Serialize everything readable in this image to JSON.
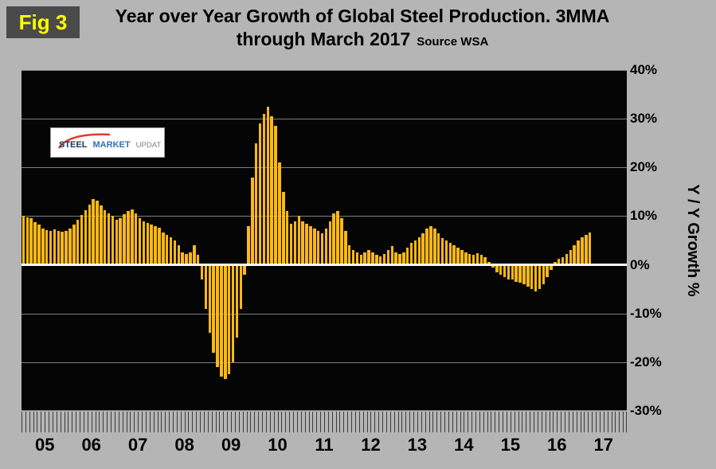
{
  "fig_label": "Fig 3",
  "title_line1": "Year over Year Growth of Global Steel Production. 3MMA",
  "title_line2": "through March 2017",
  "source": "Source WSA",
  "y_axis_title": "Y / Y Growth %",
  "logo": {
    "word1": "STEEL",
    "word2": "MARKET",
    "word3": "UPDATE"
  },
  "colors": {
    "page_bg": "#b5b5b5",
    "plot_bg": "#050505",
    "bar": "#FDB813",
    "grid": "#7d7d7d",
    "zero_line": "#ffffff",
    "fig_bg": "#4a4a4a",
    "fig_text": "#ffff00",
    "logo_red": "#e03c31",
    "logo_navy": "#17365d",
    "logo_blue": "#2e74b5"
  },
  "chart_data": {
    "type": "bar",
    "title": "Year over Year Growth of Global Steel Production. 3MMA through March 2017",
    "source": "WSA",
    "ylabel": "Y / Y Growth %",
    "ylim": [
      -30,
      40
    ],
    "ytick_percent": [
      40,
      30,
      20,
      10,
      0,
      -10,
      -20,
      -30
    ],
    "x_start": "2005-01",
    "x_end": "2017-03",
    "year_labels": [
      "05",
      "06",
      "07",
      "08",
      "09",
      "10",
      "11",
      "12",
      "13",
      "14",
      "15",
      "16",
      "17"
    ],
    "months_per_year": 12,
    "values": [
      10.0,
      9.8,
      9.5,
      8.8,
      8.2,
      7.5,
      7.2,
      7.0,
      7.3,
      7.0,
      6.8,
      7.0,
      7.5,
      8.3,
      9.2,
      10.2,
      11.2,
      12.3,
      13.5,
      13.2,
      12.2,
      11.2,
      10.6,
      10.0,
      9.2,
      9.6,
      10.4,
      11.0,
      11.4,
      10.6,
      9.6,
      9.0,
      8.6,
      8.2,
      8.0,
      7.6,
      6.6,
      6.2,
      5.6,
      5.0,
      4.0,
      2.6,
      2.2,
      2.6,
      4.0,
      2.0,
      -3.0,
      -9.0,
      -14.0,
      -18.0,
      -21.0,
      -23.0,
      -23.5,
      -22.5,
      -20.0,
      -15.0,
      -9.0,
      -2.0,
      8.0,
      18.0,
      25.0,
      29.0,
      31.0,
      32.5,
      30.5,
      28.5,
      21.0,
      15.0,
      11.0,
      8.5,
      9.0,
      10.0,
      9.0,
      8.5,
      8.0,
      7.5,
      7.0,
      6.5,
      7.5,
      9.0,
      10.5,
      11.0,
      9.5,
      7.0,
      4.0,
      3.0,
      2.5,
      2.0,
      2.5,
      3.0,
      2.5,
      2.0,
      1.8,
      2.2,
      3.0,
      3.8,
      2.5,
      2.2,
      2.6,
      3.5,
      4.5,
      5.0,
      5.6,
      6.5,
      7.5,
      8.0,
      7.5,
      6.5,
      5.5,
      5.0,
      4.5,
      4.0,
      3.5,
      3.0,
      2.6,
      2.2,
      2.0,
      2.4,
      2.0,
      1.6,
      0.6,
      -0.6,
      -1.5,
      -2.0,
      -2.5,
      -3.0,
      -3.0,
      -3.5,
      -3.6,
      -4.0,
      -4.5,
      -5.0,
      -5.5,
      -5.0,
      -4.0,
      -2.5,
      -1.0,
      0.6,
      1.2,
      1.6,
      2.2,
      3.0,
      4.0,
      5.0,
      5.6,
      6.2,
      6.6
    ]
  }
}
